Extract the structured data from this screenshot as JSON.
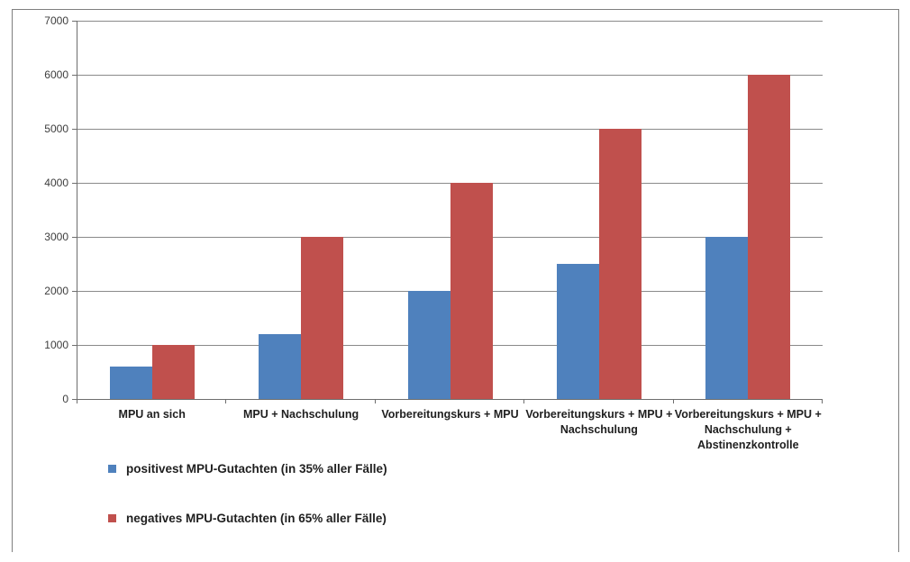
{
  "chart_data": {
    "type": "bar",
    "title": "",
    "xlabel": "",
    "ylabel": "",
    "grid": true,
    "legend_position": "bottom-left",
    "y_axis": {
      "min": 0,
      "max": 7000,
      "step": 1000,
      "tick_labels": [
        "0",
        "1000",
        "2000",
        "3000",
        "4000",
        "5000",
        "6000",
        "7000"
      ]
    },
    "categories": [
      "MPU an sich",
      "MPU + Nachschulung",
      "Vorbereitungskurs + MPU",
      "Vorbereitungskurs + MPU + Nachschulung",
      "Vorbereitungskurs + MPU + Nachschulung + Abstinenzkontrolle"
    ],
    "category_label_lines": [
      [
        "MPU an sich"
      ],
      [
        "MPU + Nachschulung"
      ],
      [
        "Vorbereitungskurs + MPU"
      ],
      [
        "Vorbereitungskurs + MPU +",
        "Nachschulung"
      ],
      [
        "Vorbereitungskurs + MPU +",
        "Nachschulung +",
        "Abstinenzkontrolle"
      ]
    ],
    "series": [
      {
        "name": "positivest MPU-Gutachten (in 35% aller Fälle)",
        "color": "#4F81BD",
        "values": [
          600,
          1200,
          2000,
          2500,
          3000
        ]
      },
      {
        "name": "negatives MPU-Gutachten (in 65% aller Fälle)",
        "color": "#C0504D",
        "values": [
          1000,
          3000,
          4000,
          5000,
          6000
        ]
      }
    ]
  },
  "colors": {
    "positive_series": "#4F81BD",
    "negative_series": "#C0504D",
    "gridline": "#8a8a8a",
    "axis": "#6e6e6e",
    "frame_border": "#7f7f7f",
    "label_text": "#1f1f1f",
    "tick_text": "#3d3d3d"
  }
}
